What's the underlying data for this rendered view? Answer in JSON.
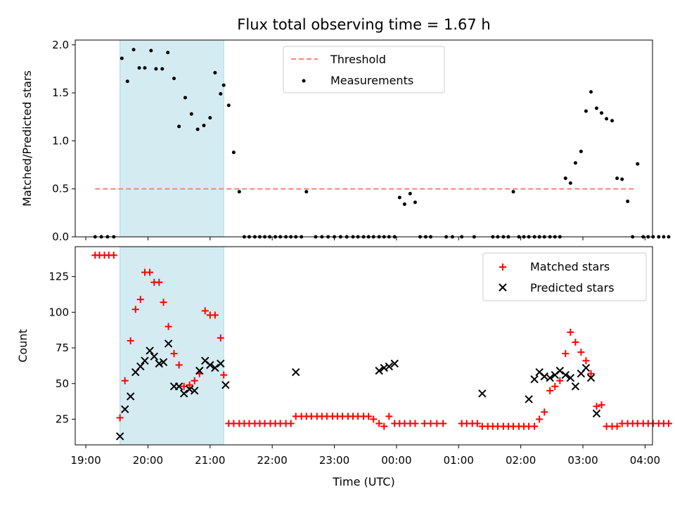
{
  "chart_data": [
    {
      "type": "scatter",
      "title": "Flux total observing time = 1.67 h",
      "xlabel": "",
      "ylabel": "Matched/Predicted stars",
      "ylim": [
        0,
        2.05
      ],
      "yticks": [
        0.0,
        0.5,
        1.0,
        1.5,
        2.0
      ],
      "ytick_labels": [
        "0.0",
        "0.5",
        "1.0",
        "1.5",
        "2.0"
      ],
      "xlim": [
        18.83,
        28.12
      ],
      "legend_position": "top-center",
      "highlight_span": [
        19.55,
        21.22
      ],
      "highlight_color": "#add8e6",
      "threshold": {
        "name": "Threshold",
        "value": 0.5,
        "x_range": [
          19.15,
          27.85
        ],
        "color": "#ff7f7f"
      },
      "measurements": {
        "name": "Measurements",
        "color": "#000000",
        "points": [
          [
            19.15,
            0
          ],
          [
            19.25,
            0
          ],
          [
            19.35,
            0
          ],
          [
            19.45,
            0
          ],
          [
            19.58,
            1.86
          ],
          [
            19.67,
            1.62
          ],
          [
            19.77,
            1.95
          ],
          [
            19.86,
            1.76
          ],
          [
            19.95,
            1.76
          ],
          [
            20.05,
            1.94
          ],
          [
            20.13,
            1.75
          ],
          [
            20.23,
            1.75
          ],
          [
            20.32,
            1.92
          ],
          [
            20.42,
            1.65
          ],
          [
            20.5,
            1.15
          ],
          [
            20.6,
            1.45
          ],
          [
            20.7,
            1.28
          ],
          [
            20.8,
            1.12
          ],
          [
            20.9,
            1.16
          ],
          [
            21.0,
            1.24
          ],
          [
            21.08,
            1.71
          ],
          [
            21.17,
            1.49
          ],
          [
            21.22,
            1.58
          ],
          [
            21.3,
            1.37
          ],
          [
            21.38,
            0.88
          ],
          [
            21.47,
            0.47
          ],
          [
            21.55,
            0
          ],
          [
            21.63,
            0
          ],
          [
            21.72,
            0
          ],
          [
            21.8,
            0
          ],
          [
            21.88,
            0
          ],
          [
            21.96,
            0
          ],
          [
            22.05,
            0
          ],
          [
            22.13,
            0
          ],
          [
            22.22,
            0
          ],
          [
            22.3,
            0
          ],
          [
            22.38,
            0
          ],
          [
            22.47,
            0
          ],
          [
            22.55,
            0.47
          ],
          [
            22.7,
            0
          ],
          [
            22.8,
            0
          ],
          [
            22.9,
            0
          ],
          [
            23.0,
            0
          ],
          [
            23.1,
            0
          ],
          [
            23.2,
            0
          ],
          [
            23.3,
            0
          ],
          [
            23.38,
            0
          ],
          [
            23.47,
            0
          ],
          [
            23.55,
            0
          ],
          [
            23.63,
            0
          ],
          [
            23.72,
            0
          ],
          [
            23.8,
            0
          ],
          [
            23.88,
            0
          ],
          [
            23.97,
            0
          ],
          [
            24.05,
            0.41
          ],
          [
            24.13,
            0.34
          ],
          [
            24.22,
            0.45
          ],
          [
            24.3,
            0.36
          ],
          [
            24.38,
            0
          ],
          [
            24.47,
            0
          ],
          [
            24.55,
            0
          ],
          [
            24.8,
            0
          ],
          [
            24.9,
            0
          ],
          [
            25.05,
            0
          ],
          [
            25.25,
            0
          ],
          [
            25.55,
            0
          ],
          [
            25.63,
            0
          ],
          [
            25.72,
            0
          ],
          [
            25.8,
            0
          ],
          [
            25.88,
            0.47
          ],
          [
            25.97,
            0
          ],
          [
            26.05,
            0
          ],
          [
            26.13,
            0
          ],
          [
            26.22,
            0
          ],
          [
            26.3,
            0
          ],
          [
            26.38,
            0
          ],
          [
            26.47,
            0
          ],
          [
            26.55,
            0
          ],
          [
            26.63,
            0
          ],
          [
            26.72,
            0.61
          ],
          [
            26.8,
            0.56
          ],
          [
            26.88,
            0.77
          ],
          [
            26.97,
            0.89
          ],
          [
            27.05,
            1.31
          ],
          [
            27.13,
            1.51
          ],
          [
            27.22,
            1.34
          ],
          [
            27.3,
            1.29
          ],
          [
            27.38,
            1.23
          ],
          [
            27.47,
            1.21
          ],
          [
            27.55,
            0.61
          ],
          [
            27.63,
            0.6
          ],
          [
            27.72,
            0.37
          ],
          [
            27.8,
            0
          ],
          [
            27.88,
            0.76
          ],
          [
            27.97,
            0
          ],
          [
            28.05,
            0
          ],
          [
            28.13,
            0
          ],
          [
            28.22,
            0
          ],
          [
            28.3,
            0
          ],
          [
            28.38,
            0
          ]
        ]
      }
    },
    {
      "type": "scatter",
      "title": "",
      "xlabel": "Time (UTC)",
      "ylabel": "Count",
      "ylim": [
        7,
        146
      ],
      "yticks": [
        25,
        50,
        75,
        100,
        125
      ],
      "ytick_labels": [
        "25",
        "50",
        "75",
        "100",
        "125"
      ],
      "xlim": [
        18.83,
        28.12
      ],
      "xticks": [
        19,
        20,
        21,
        22,
        23,
        24,
        25,
        26,
        27,
        28
      ],
      "xtick_labels": [
        "19:00",
        "20:00",
        "21:00",
        "22:00",
        "23:00",
        "00:00",
        "01:00",
        "02:00",
        "03:00",
        "04:00"
      ],
      "legend_position": "top-right",
      "highlight_span": [
        19.55,
        21.22
      ],
      "highlight_color": "#add8e6",
      "series": [
        {
          "name": "Matched stars",
          "marker": "plus",
          "color": "#ff0000",
          "points": [
            [
              19.15,
              140
            ],
            [
              19.22,
              140
            ],
            [
              19.3,
              140
            ],
            [
              19.37,
              140
            ],
            [
              19.45,
              140
            ],
            [
              19.55,
              26
            ],
            [
              19.63,
              52
            ],
            [
              19.72,
              80
            ],
            [
              19.8,
              102
            ],
            [
              19.88,
              109
            ],
            [
              19.95,
              128
            ],
            [
              20.03,
              128
            ],
            [
              20.1,
              121
            ],
            [
              20.18,
              121
            ],
            [
              20.25,
              107
            ],
            [
              20.33,
              90
            ],
            [
              20.42,
              71
            ],
            [
              20.5,
              63
            ],
            [
              20.58,
              48
            ],
            [
              20.67,
              49
            ],
            [
              20.75,
              52
            ],
            [
              20.83,
              57
            ],
            [
              20.92,
              101
            ],
            [
              21.0,
              98
            ],
            [
              21.08,
              98
            ],
            [
              21.17,
              82
            ],
            [
              21.22,
              56
            ],
            [
              21.3,
              22
            ],
            [
              21.38,
              22
            ],
            [
              21.47,
              22
            ],
            [
              21.55,
              22
            ],
            [
              21.63,
              22
            ],
            [
              21.72,
              22
            ],
            [
              21.8,
              22
            ],
            [
              21.88,
              22
            ],
            [
              21.97,
              22
            ],
            [
              22.05,
              22
            ],
            [
              22.13,
              22
            ],
            [
              22.22,
              22
            ],
            [
              22.3,
              22
            ],
            [
              22.38,
              27
            ],
            [
              22.47,
              27
            ],
            [
              22.55,
              27
            ],
            [
              22.63,
              27
            ],
            [
              22.72,
              27
            ],
            [
              22.8,
              27
            ],
            [
              22.88,
              27
            ],
            [
              22.97,
              27
            ],
            [
              23.05,
              27
            ],
            [
              23.13,
              27
            ],
            [
              23.22,
              27
            ],
            [
              23.3,
              27
            ],
            [
              23.38,
              27
            ],
            [
              23.47,
              27
            ],
            [
              23.55,
              27
            ],
            [
              23.63,
              25
            ],
            [
              23.72,
              22
            ],
            [
              23.8,
              20
            ],
            [
              23.88,
              27
            ],
            [
              23.97,
              22
            ],
            [
              24.05,
              22
            ],
            [
              24.13,
              22
            ],
            [
              24.22,
              22
            ],
            [
              24.3,
              22
            ],
            [
              24.45,
              22
            ],
            [
              24.55,
              22
            ],
            [
              24.65,
              22
            ],
            [
              24.75,
              22
            ],
            [
              25.05,
              22
            ],
            [
              25.13,
              22
            ],
            [
              25.22,
              22
            ],
            [
              25.3,
              22
            ],
            [
              25.38,
              20
            ],
            [
              25.47,
              20
            ],
            [
              25.55,
              20
            ],
            [
              25.63,
              20
            ],
            [
              25.72,
              20
            ],
            [
              25.8,
              20
            ],
            [
              25.88,
              20
            ],
            [
              25.97,
              20
            ],
            [
              26.05,
              20
            ],
            [
              26.13,
              20
            ],
            [
              26.22,
              20
            ],
            [
              26.3,
              25
            ],
            [
              26.38,
              30
            ],
            [
              26.47,
              45
            ],
            [
              26.55,
              48
            ],
            [
              26.63,
              52
            ],
            [
              26.72,
              71
            ],
            [
              26.8,
              86
            ],
            [
              26.88,
              79
            ],
            [
              26.97,
              72
            ],
            [
              27.05,
              66
            ],
            [
              27.13,
              57
            ],
            [
              27.22,
              34
            ],
            [
              27.3,
              35
            ],
            [
              27.38,
              20
            ],
            [
              27.47,
              20
            ],
            [
              27.55,
              20
            ],
            [
              27.63,
              22
            ],
            [
              27.72,
              22
            ],
            [
              27.8,
              22
            ],
            [
              27.88,
              22
            ],
            [
              27.97,
              22
            ],
            [
              28.05,
              22
            ],
            [
              28.13,
              22
            ],
            [
              28.22,
              22
            ],
            [
              28.3,
              22
            ],
            [
              28.38,
              22
            ]
          ]
        },
        {
          "name": "Predicted stars",
          "marker": "x",
          "color": "#000000",
          "points": [
            [
              19.55,
              13
            ],
            [
              19.63,
              32
            ],
            [
              19.72,
              41
            ],
            [
              19.8,
              58
            ],
            [
              19.88,
              62
            ],
            [
              19.95,
              66
            ],
            [
              20.03,
              73
            ],
            [
              20.1,
              69
            ],
            [
              20.18,
              64
            ],
            [
              20.25,
              65
            ],
            [
              20.33,
              78
            ],
            [
              20.42,
              48
            ],
            [
              20.5,
              48
            ],
            [
              20.58,
              43
            ],
            [
              20.67,
              46
            ],
            [
              20.75,
              45
            ],
            [
              20.83,
              59
            ],
            [
              20.92,
              66
            ],
            [
              21.0,
              63
            ],
            [
              21.08,
              61
            ],
            [
              21.17,
              64
            ],
            [
              21.25,
              49
            ],
            [
              22.38,
              58
            ],
            [
              23.72,
              59
            ],
            [
              23.8,
              61
            ],
            [
              23.88,
              62
            ],
            [
              23.97,
              64
            ],
            [
              25.38,
              43
            ],
            [
              26.13,
              39
            ],
            [
              26.22,
              53
            ],
            [
              26.3,
              58
            ],
            [
              26.38,
              55
            ],
            [
              26.47,
              54
            ],
            [
              26.55,
              56
            ],
            [
              26.63,
              59
            ],
            [
              26.72,
              56
            ],
            [
              26.8,
              54
            ],
            [
              26.88,
              48
            ],
            [
              26.97,
              57
            ],
            [
              27.05,
              61
            ],
            [
              27.13,
              54
            ],
            [
              27.22,
              29
            ]
          ]
        }
      ]
    }
  ]
}
